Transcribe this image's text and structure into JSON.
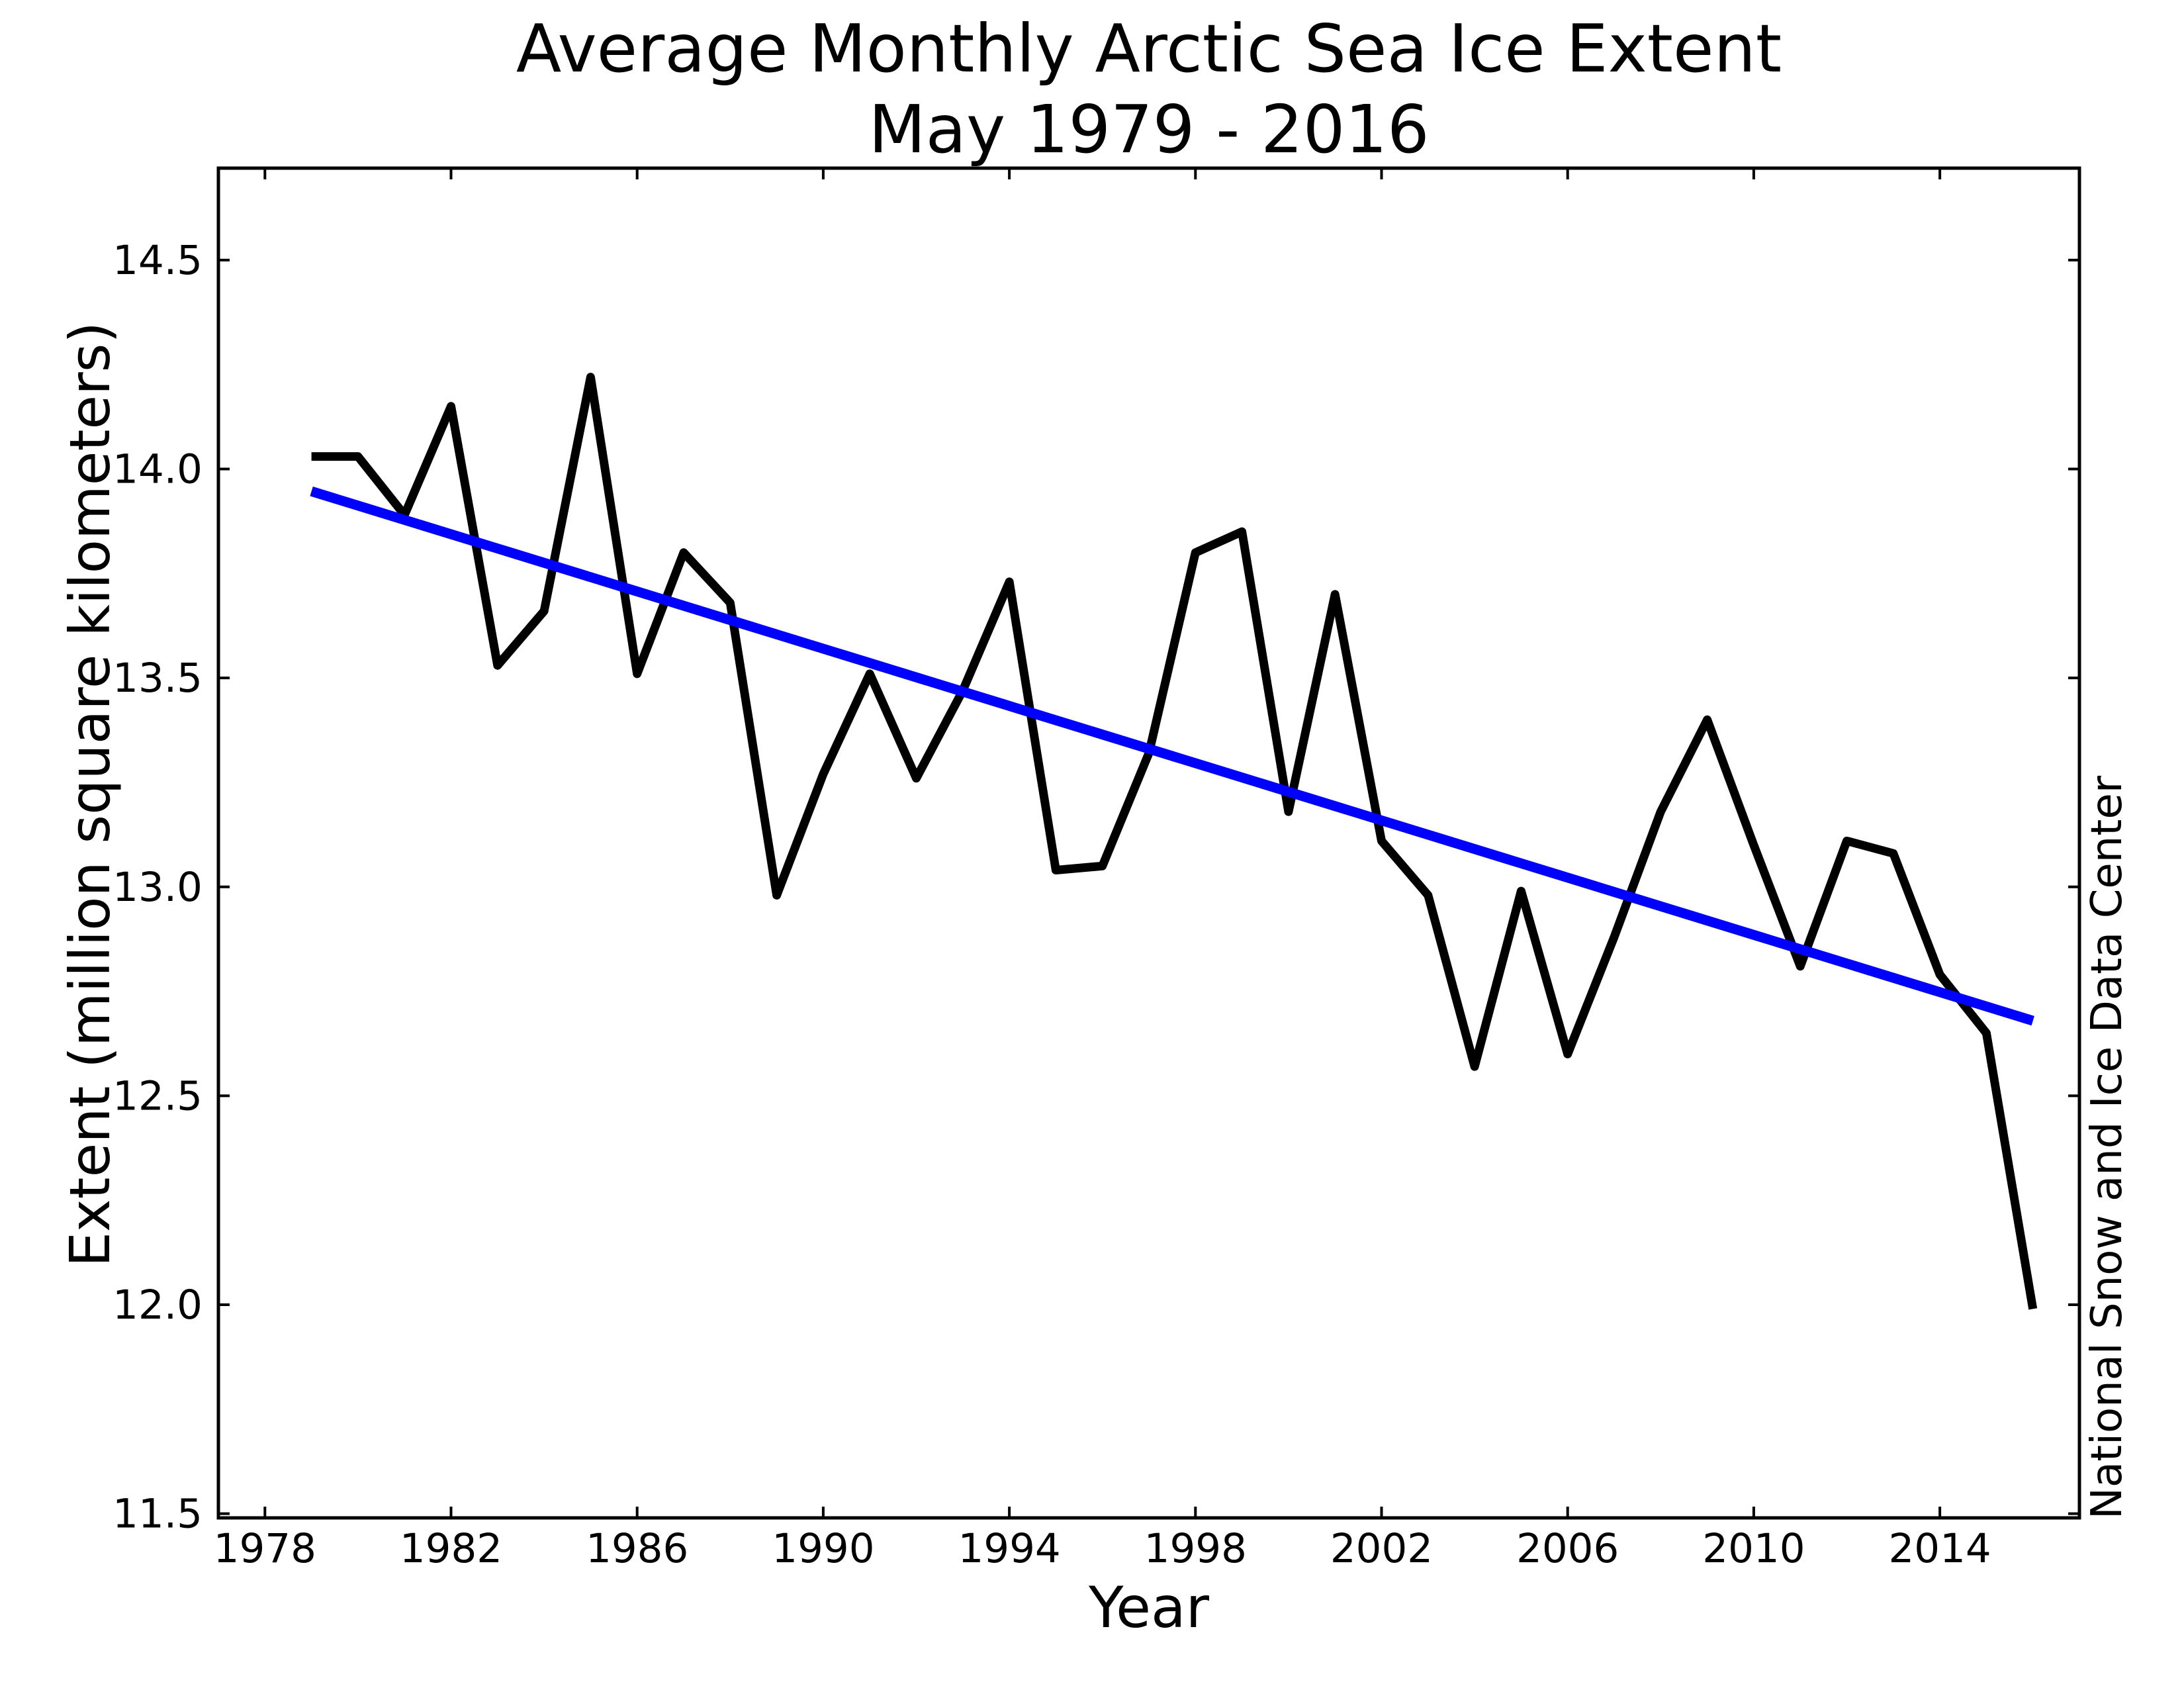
{
  "chart_data": {
    "type": "line",
    "title": "Average Monthly Arctic Sea Ice Extent",
    "subtitle": "May 1979 - 2016",
    "xlabel": "Year",
    "ylabel": "Extent (million square kilometers)",
    "credit": "National Snow and Ice Data Center",
    "x": [
      1979,
      1980,
      1981,
      1982,
      1983,
      1984,
      1985,
      1986,
      1987,
      1988,
      1989,
      1990,
      1991,
      1992,
      1993,
      1994,
      1995,
      1996,
      1997,
      1998,
      1999,
      2000,
      2001,
      2002,
      2003,
      2004,
      2005,
      2006,
      2007,
      2008,
      2009,
      2010,
      2011,
      2012,
      2013,
      2014,
      2015,
      2016
    ],
    "series": [
      {
        "name": "Average monthly extent (May)",
        "color": "#000000",
        "values": [
          14.03,
          14.03,
          13.89,
          14.15,
          13.53,
          13.66,
          14.22,
          13.51,
          13.8,
          13.68,
          12.98,
          13.27,
          13.51,
          13.26,
          13.47,
          13.73,
          13.04,
          13.05,
          13.32,
          13.8,
          13.85,
          13.18,
          13.7,
          13.11,
          12.98,
          12.57,
          12.99,
          12.6,
          12.88,
          13.18,
          13.4,
          13.1,
          12.81,
          13.11,
          13.08,
          12.79,
          12.65,
          11.99
        ]
      }
    ],
    "trend": {
      "name": "Linear trend",
      "method": "least-squares",
      "color": "#0000ff",
      "x_start": 1979,
      "x_end": 2016
    },
    "xlim": [
      1977,
      2017
    ],
    "ylim": [
      11.49,
      14.72
    ],
    "xticks": [
      1978,
      1982,
      1986,
      1990,
      1994,
      1998,
      2002,
      2006,
      2010,
      2014
    ],
    "yticks": [
      11.5,
      12.0,
      12.5,
      13.0,
      13.5,
      14.0,
      14.5
    ],
    "ytick_labels": [
      "11.5",
      "12.0",
      "12.5",
      "13.0",
      "13.5",
      "14.0",
      "14.5"
    ],
    "grid": false,
    "legend": "none",
    "line_color": "#000000",
    "trend_color": "#0000ff",
    "background_color": "#ffffff"
  }
}
